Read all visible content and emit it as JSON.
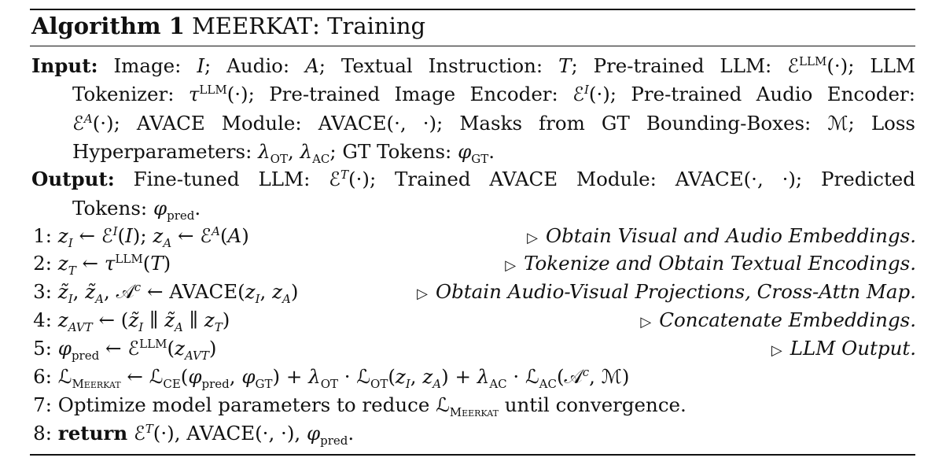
{
  "algorithm": {
    "label": "Algorithm 1",
    "name": "MEERKAT",
    "subtitle": ": Training"
  },
  "input": {
    "keyword": "Input:",
    "lines": [
      "Image: I; Audio: A; Textual Instruction: T; Pre-trained LLM: ℰ^LLM(·); LLM",
      "Tokenizer: τ^LLM(·); Pre-trained Image Encoder: ℰ^I(·); Pre-trained Audio Encoder:",
      "ℰ^A(·); AVACE Module: AVACE(·, ·); Masks from GT Bounding-Boxes: ℳ; Loss",
      "Hyperparameters: λOT, λAC; GT Tokens: φGT."
    ]
  },
  "output": {
    "keyword": "Output:",
    "lines": [
      "Fine-tuned LLM: ℰ^T(·); Trained AVACE Module: AVACE(·, ·); Predicted",
      "Tokens: φpred."
    ]
  },
  "steps": [
    {
      "num": "1:",
      "code": "zI ← ℰ^I(I); zA ← ℰ^A(A)",
      "comment": "Obtain Visual and Audio Embeddings."
    },
    {
      "num": "2:",
      "code": "zT ← τ^LLM(T)",
      "comment": "Tokenize and Obtain Textual Encodings."
    },
    {
      "num": "3:",
      "code": "z̃I, z̃A, 𝒜^c ← AVACE(zI, zA)",
      "comment": "Obtain Audio-Visual Projections, Cross-Attn Map."
    },
    {
      "num": "4:",
      "code": "zAVT ← (z̃I ∥ z̃A ∥ zT)",
      "comment": "Concatenate Embeddings."
    },
    {
      "num": "5:",
      "code": "φpred ← ℰ^LLM(zAVT)",
      "comment": "LLM Output."
    },
    {
      "num": "6:",
      "code": "ℒMEERKAT ← ℒCE(φpred, φGT) + λOT · ℒOT(zI, zA) + λAC · ℒAC(𝒜^c, ℳ)",
      "comment": ""
    },
    {
      "num": "7:",
      "code": "Optimize model parameters to reduce ℒMEERKAT until convergence.",
      "comment": ""
    },
    {
      "num": "8:",
      "keyword": "return",
      "code": "ℰ^T(·), AVACE(·, ·), φpred.",
      "comment": ""
    }
  ]
}
